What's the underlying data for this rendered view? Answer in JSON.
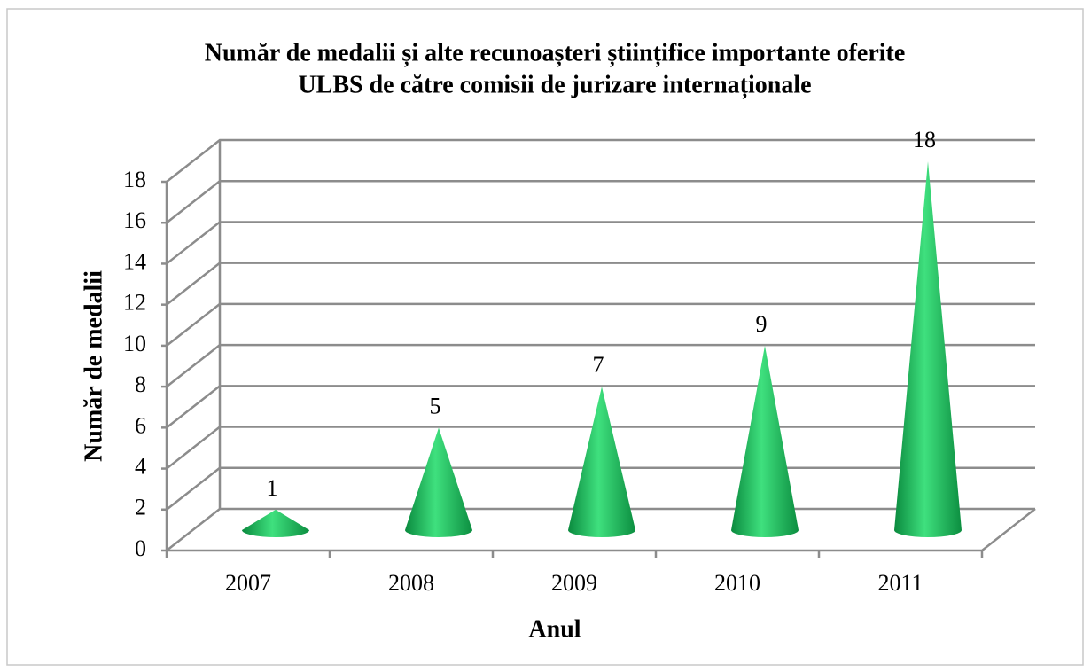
{
  "chart_data": {
    "type": "cone3d",
    "title": [
      "Număr de medalii și alte recunoașteri științifice importante oferite",
      "ULBS de către comisii de jurizare internaționale"
    ],
    "x_label": "Anul",
    "y_label": "Număr de medalii",
    "categories": [
      "2007",
      "2008",
      "2009",
      "2010",
      "2011"
    ],
    "values": [
      1,
      5,
      7,
      9,
      18
    ],
    "color": "#1fbf5c",
    "ylim": [
      0,
      18
    ],
    "yticks": [
      0,
      2,
      4,
      6,
      8,
      10,
      12,
      14,
      16,
      18
    ],
    "grid": true
  }
}
